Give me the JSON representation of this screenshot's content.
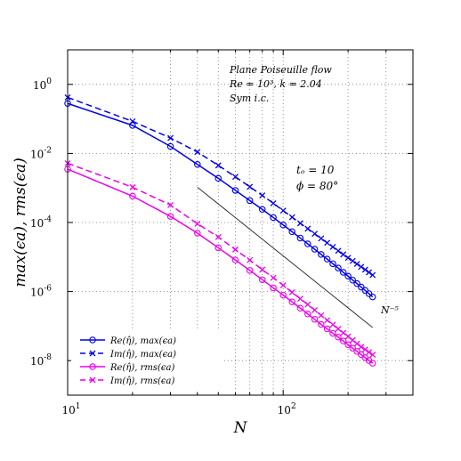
{
  "chart_data": {
    "type": "line",
    "x_scale": "log",
    "y_scale": "log",
    "xlim": [
      10,
      400
    ],
    "ylim": [
      1e-09,
      10
    ],
    "grid": true,
    "legend_placement": "bottom-left",
    "xlabel": "N",
    "ylabel": "max(ϵa),  rms(ϵa)",
    "x_ticks": [
      {
        "value": 10,
        "base": "10",
        "exp": "1"
      },
      {
        "value": 100,
        "base": "10",
        "exp": "2"
      }
    ],
    "y_ticks": [
      {
        "value": 1e-08,
        "base": "10",
        "exp": "-8"
      },
      {
        "value": 1e-06,
        "base": "10",
        "exp": "-6"
      },
      {
        "value": 0.0001,
        "base": "10",
        "exp": "-4"
      },
      {
        "value": 0.01,
        "base": "10",
        "exp": "-2"
      },
      {
        "value": 1,
        "base": "10",
        "exp": "0"
      }
    ],
    "annotations": {
      "title_line1": "Plane Poiseuille flow",
      "title_line2": "Re = 10³,  k = 2.04",
      "title_line3": "Sym i.c.",
      "param_line1": "tₒ = 10",
      "param_line2": "ϕ = 80°",
      "slope_label": "N⁻⁵"
    },
    "reference_line": {
      "x": [
        40,
        260
      ],
      "y": [
        0.00105,
        9.1e-08
      ]
    },
    "series": [
      {
        "name": "Re(η̂),  max(ϵa)",
        "color": "#0000ee",
        "dash": "solid",
        "marker": "o",
        "x": [
          10,
          20,
          30,
          40,
          50,
          60,
          70,
          80,
          90,
          100,
          110,
          120,
          130,
          140,
          150,
          160,
          170,
          180,
          190,
          200,
          210,
          220,
          230,
          240,
          250,
          260
        ],
        "y": [
          0.28,
          0.065,
          0.016,
          0.0048,
          0.0019,
          0.00085,
          0.00043,
          0.00024,
          0.000139,
          8.5e-05,
          5.4e-05,
          3.55e-05,
          2.41e-05,
          1.68e-05,
          1.19e-05,
          8.7e-06,
          6.4e-06,
          4.8e-06,
          3.6e-06,
          2.8e-06,
          2.15e-06,
          1.7e-06,
          1.35e-06,
          1.08e-06,
          8.7e-07,
          7e-07
        ]
      },
      {
        "name": "Im(η̂),  max(ϵa)",
        "color": "#0000ee",
        "dash": "dashed",
        "marker": "x",
        "x": [
          10,
          20,
          30,
          40,
          50,
          60,
          70,
          80,
          90,
          100,
          110,
          120,
          130,
          140,
          150,
          160,
          170,
          180,
          190,
          200,
          210,
          220,
          230,
          240,
          250,
          260
        ],
        "y": [
          0.42,
          0.085,
          0.028,
          0.011,
          0.0045,
          0.0021,
          0.00108,
          0.00061,
          0.00036,
          0.00022,
          0.000142,
          9.5e-05,
          6.6e-05,
          4.7e-05,
          3.45e-05,
          2.58e-05,
          1.96e-05,
          1.51e-05,
          1.19e-05,
          9.5e-06,
          7.7e-06,
          6.3e-06,
          5.2e-06,
          4.3e-06,
          3.6e-06,
          3e-06
        ]
      },
      {
        "name": "Re(η̂),  rms(ϵa)",
        "color": "#ee00ee",
        "dash": "solid",
        "marker": "o",
        "x": [
          10,
          20,
          30,
          40,
          50,
          60,
          70,
          80,
          90,
          100,
          110,
          120,
          130,
          140,
          150,
          160,
          170,
          180,
          190,
          200,
          210,
          220,
          230,
          240,
          250,
          260
        ],
        "y": [
          0.0035,
          0.00058,
          0.00015,
          4.9e-05,
          1.85e-05,
          8.2e-06,
          4.1e-06,
          2.2e-06,
          1.28e-06,
          7.9e-07,
          5e-07,
          3.3e-07,
          2.25e-07,
          1.57e-07,
          1.12e-07,
          8.3e-08,
          6.2e-08,
          4.8e-08,
          3.7e-08,
          2.9e-08,
          2.3e-08,
          1.85e-08,
          1.5e-08,
          1.22e-08,
          1.01e-08,
          8.4e-09
        ]
      },
      {
        "name": "Im(η̂),  rms(ϵa)",
        "color": "#ee00ee",
        "dash": "dashed",
        "marker": "x",
        "x": [
          10,
          20,
          30,
          40,
          50,
          60,
          70,
          80,
          90,
          100,
          110,
          120,
          130,
          140,
          150,
          160,
          170,
          180,
          190,
          200,
          210,
          220,
          230,
          240,
          250,
          260
        ],
        "y": [
          0.0052,
          0.00105,
          0.00032,
          9.2e-05,
          3.8e-05,
          1.65e-05,
          8.1e-06,
          4.3e-06,
          2.5e-06,
          1.52e-06,
          9.5e-07,
          6.2e-07,
          4.2e-07,
          2.9e-07,
          2.05e-07,
          1.48e-07,
          1.1e-07,
          8.3e-08,
          6.4e-08,
          5e-08,
          3.9e-08,
          3.1e-08,
          2.5e-08,
          2.1e-08,
          1.75e-08,
          1.48e-08
        ]
      }
    ]
  }
}
